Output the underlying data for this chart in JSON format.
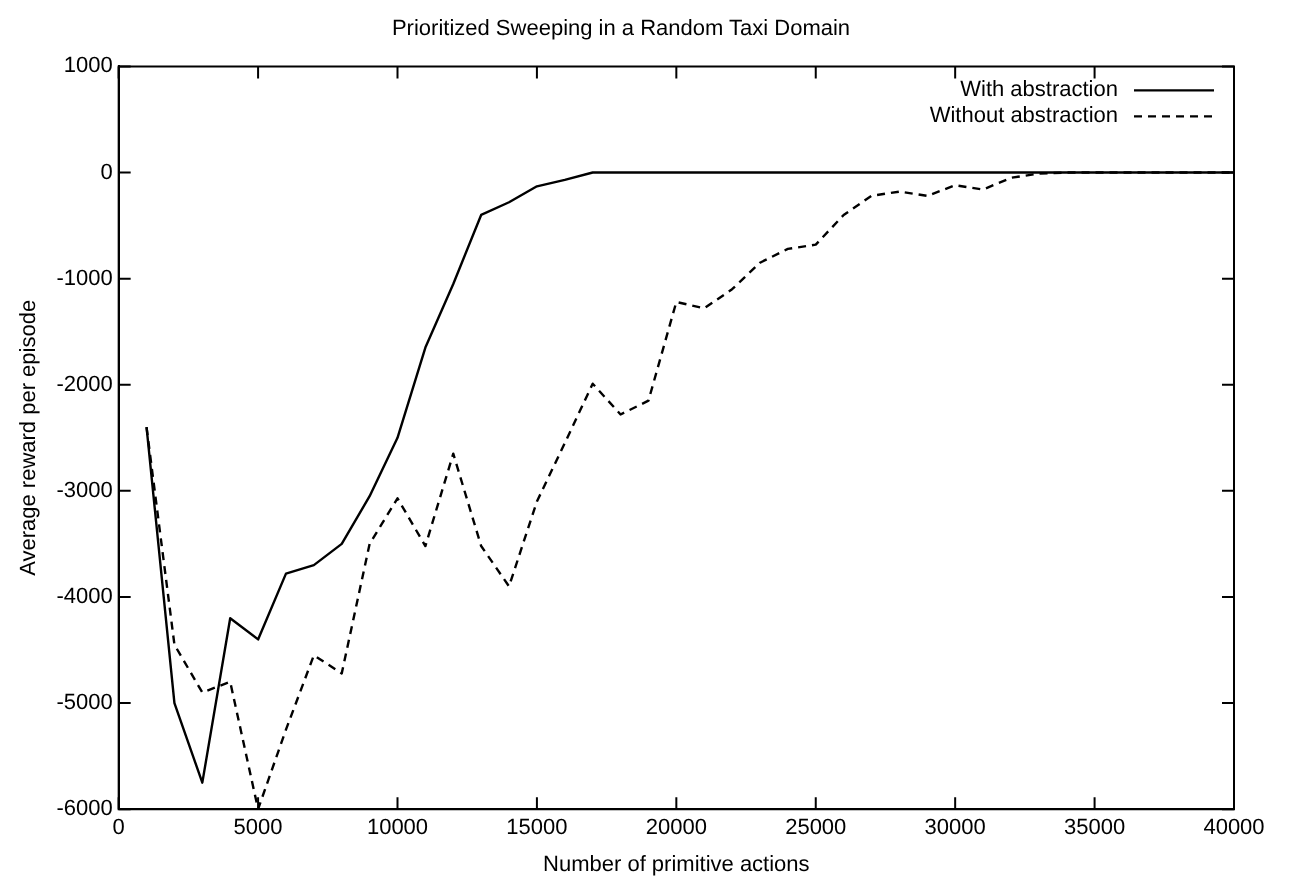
{
  "chart_data": {
    "type": "line",
    "title": "Prioritized Sweeping in a Random Taxi Domain",
    "xlabel": "Number of primitive actions",
    "ylabel": "Average reward per episode",
    "x": [
      1000,
      2000,
      3000,
      4000,
      5000,
      6000,
      7000,
      8000,
      9000,
      10000,
      11000,
      12000,
      13000,
      14000,
      15000,
      16000,
      17000,
      18000,
      19000,
      20000,
      21000,
      22000,
      23000,
      24000,
      25000,
      26000,
      27000,
      28000,
      29000,
      30000,
      31000,
      32000,
      33000,
      34000,
      35000,
      36000,
      37000,
      38000,
      39000,
      40000
    ],
    "series": [
      {
        "name": "With abstraction",
        "color": "#000000",
        "line_style": "solid",
        "values": [
          -2400,
          -5000,
          -5750,
          -4200,
          -4400,
          -3780,
          -3700,
          -3500,
          -3050,
          -2500,
          -1650,
          -1050,
          -400,
          -280,
          -130,
          -70,
          0,
          0,
          0,
          0,
          0,
          0,
          0,
          0,
          0,
          0,
          0,
          0,
          0,
          0,
          0,
          0,
          0,
          0,
          0,
          0,
          0,
          0,
          0,
          0
        ]
      },
      {
        "name": "Without abstraction",
        "color": "#000000",
        "line_style": "dashed",
        "values": [
          -2400,
          -4450,
          -4900,
          -4800,
          -6000,
          -5250,
          -4550,
          -4720,
          -3500,
          -3070,
          -3520,
          -2650,
          -3520,
          -3900,
          -3100,
          -2550,
          -1990,
          -2280,
          -2150,
          -1220,
          -1280,
          -1100,
          -850,
          -720,
          -680,
          -400,
          -220,
          -180,
          -220,
          -120,
          -160,
          -50,
          -10,
          0,
          0,
          0,
          0,
          0,
          0,
          0
        ]
      }
    ],
    "xlim": [
      0,
      40000
    ],
    "xticks": [
      0,
      5000,
      10000,
      15000,
      20000,
      25000,
      30000,
      35000,
      40000
    ],
    "ylim": [
      -6000,
      1000
    ],
    "yticks": [
      -6000,
      -5000,
      -4000,
      -3000,
      -2000,
      -1000,
      0,
      1000
    ],
    "grid": false,
    "legend": "top right",
    "marker": "none"
  }
}
